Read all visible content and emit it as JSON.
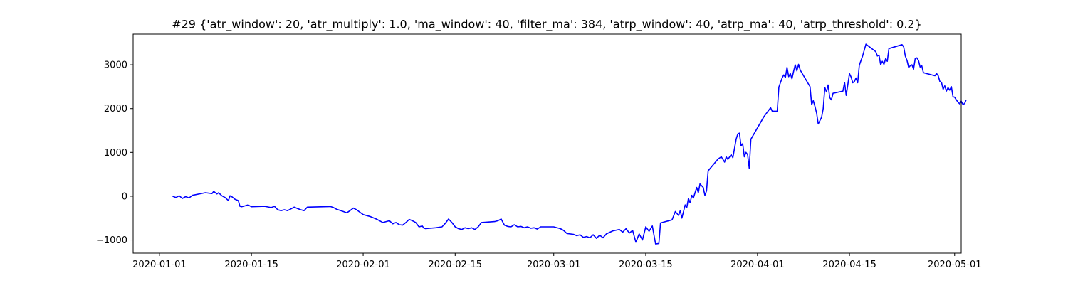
{
  "chart_data": {
    "type": "line",
    "title": "#29 {'atr_window': 20, 'atr_multiply': 1.0, 'ma_window': 40, 'filter_ma': 384, 'atrp_window': 40, 'atrp_ma': 40, 'atrp_threshold': 0.2}",
    "xlabel": "",
    "ylabel": "",
    "grid": false,
    "legend": "none",
    "x_tick_labels": [
      "2020-01-01",
      "2020-01-15",
      "2020-02-01",
      "2020-02-15",
      "2020-03-01",
      "2020-03-15",
      "2020-04-01",
      "2020-04-15",
      "2020-05-01"
    ],
    "y_tick_labels": [
      "−1000",
      "0",
      "1000",
      "2000",
      "3000"
    ],
    "y_ticks": [
      -1000,
      0,
      1000,
      2000,
      3000
    ],
    "x_ticks": [
      "2020-01-01",
      "2020-01-15",
      "2020-02-01",
      "2020-02-15",
      "2020-03-01",
      "2020-03-15",
      "2020-04-01",
      "2020-04-15",
      "2020-05-01"
    ],
    "xlim": [
      "2019-12-28",
      "2020-05-02"
    ],
    "ylim": [
      -1300,
      3700
    ],
    "series": [
      {
        "color": "#0000ff",
        "points": [
          [
            "2020-01-03",
            0
          ],
          [
            "2020-01-03T12:00",
            -30
          ],
          [
            "2020-01-04",
            10
          ],
          [
            "2020-01-04T12:00",
            -50
          ],
          [
            "2020-01-05",
            -10
          ],
          [
            "2020-01-05T12:00",
            -40
          ],
          [
            "2020-01-06",
            20
          ],
          [
            "2020-01-08",
            80
          ],
          [
            "2020-01-09",
            60
          ],
          [
            "2020-01-09T06:00",
            110
          ],
          [
            "2020-01-09T18:00",
            50
          ],
          [
            "2020-01-10",
            80
          ],
          [
            "2020-01-10T12:00",
            10
          ],
          [
            "2020-01-11",
            -30
          ],
          [
            "2020-01-11T12:00",
            -100
          ],
          [
            "2020-01-11T18:00",
            10
          ],
          [
            "2020-01-12",
            -10
          ],
          [
            "2020-01-12T12:00",
            -70
          ],
          [
            "2020-01-13",
            -100
          ],
          [
            "2020-01-13T06:00",
            -230
          ],
          [
            "2020-01-13T12:00",
            -240
          ],
          [
            "2020-01-14",
            -220
          ],
          [
            "2020-01-14T12:00",
            -200
          ],
          [
            "2020-01-15",
            -240
          ],
          [
            "2020-01-17",
            -230
          ],
          [
            "2020-01-18",
            -260
          ],
          [
            "2020-01-18T12:00",
            -230
          ],
          [
            "2020-01-19",
            -310
          ],
          [
            "2020-01-19T12:00",
            -330
          ],
          [
            "2020-01-20",
            -310
          ],
          [
            "2020-01-20T12:00",
            -330
          ],
          [
            "2020-01-21",
            -290
          ],
          [
            "2020-01-21T12:00",
            -250
          ],
          [
            "2020-01-22",
            -280
          ],
          [
            "2020-01-22T12:00",
            -310
          ],
          [
            "2020-01-23",
            -330
          ],
          [
            "2020-01-23T12:00",
            -250
          ],
          [
            "2020-01-27",
            -235
          ],
          [
            "2020-01-27T12:00",
            -260
          ],
          [
            "2020-01-28",
            -300
          ],
          [
            "2020-01-29",
            -350
          ],
          [
            "2020-01-29T12:00",
            -380
          ],
          [
            "2020-01-30",
            -330
          ],
          [
            "2020-01-30T12:00",
            -270
          ],
          [
            "2020-01-31",
            -310
          ],
          [
            "2020-02-01",
            -420
          ],
          [
            "2020-02-02",
            -460
          ],
          [
            "2020-02-03",
            -520
          ],
          [
            "2020-02-03T12:00",
            -560
          ],
          [
            "2020-02-04",
            -600
          ],
          [
            "2020-02-04T12:00",
            -580
          ],
          [
            "2020-02-05",
            -560
          ],
          [
            "2020-02-05T12:00",
            -630
          ],
          [
            "2020-02-06",
            -600
          ],
          [
            "2020-02-06T12:00",
            -650
          ],
          [
            "2020-02-07",
            -660
          ],
          [
            "2020-02-07T12:00",
            -600
          ],
          [
            "2020-02-08",
            -530
          ],
          [
            "2020-02-08T12:00",
            -560
          ],
          [
            "2020-02-09",
            -600
          ],
          [
            "2020-02-09T12:00",
            -700
          ],
          [
            "2020-02-10",
            -680
          ],
          [
            "2020-02-10T06:00",
            -730
          ],
          [
            "2020-02-10T12:00",
            -740
          ],
          [
            "2020-02-12",
            -720
          ],
          [
            "2020-02-13",
            -700
          ],
          [
            "2020-02-13T12:00",
            -620
          ],
          [
            "2020-02-14",
            -520
          ],
          [
            "2020-02-14T12:00",
            -600
          ],
          [
            "2020-02-15",
            -700
          ],
          [
            "2020-02-15T12:00",
            -740
          ],
          [
            "2020-02-16",
            -760
          ],
          [
            "2020-02-16T12:00",
            -720
          ],
          [
            "2020-02-17",
            -740
          ],
          [
            "2020-02-17T12:00",
            -720
          ],
          [
            "2020-02-18",
            -760
          ],
          [
            "2020-02-18T12:00",
            -700
          ],
          [
            "2020-02-19",
            -600
          ],
          [
            "2020-02-21",
            -580
          ],
          [
            "2020-02-21T12:00",
            -560
          ],
          [
            "2020-02-22",
            -520
          ],
          [
            "2020-02-22T12:00",
            -660
          ],
          [
            "2020-02-23",
            -690
          ],
          [
            "2020-02-23T12:00",
            -700
          ],
          [
            "2020-02-24",
            -650
          ],
          [
            "2020-02-24T12:00",
            -700
          ],
          [
            "2020-02-25",
            -690
          ],
          [
            "2020-02-25T12:00",
            -720
          ],
          [
            "2020-02-26",
            -700
          ],
          [
            "2020-02-26T12:00",
            -730
          ],
          [
            "2020-02-27",
            -720
          ],
          [
            "2020-02-27T12:00",
            -750
          ],
          [
            "2020-02-28",
            -700
          ],
          [
            "2020-03-01",
            -700
          ],
          [
            "2020-03-02",
            -740
          ],
          [
            "2020-03-02T12:00",
            -780
          ],
          [
            "2020-03-03",
            -850
          ],
          [
            "2020-03-04",
            -870
          ],
          [
            "2020-03-04T12:00",
            -900
          ],
          [
            "2020-03-05",
            -880
          ],
          [
            "2020-03-05T12:00",
            -940
          ],
          [
            "2020-03-06",
            -920
          ],
          [
            "2020-03-06T12:00",
            -950
          ],
          [
            "2020-03-07",
            -880
          ],
          [
            "2020-03-07T12:00",
            -960
          ],
          [
            "2020-03-08",
            -890
          ],
          [
            "2020-03-08T12:00",
            -950
          ],
          [
            "2020-03-09",
            -860
          ],
          [
            "2020-03-10",
            -790
          ],
          [
            "2020-03-11",
            -760
          ],
          [
            "2020-03-11T12:00",
            -820
          ],
          [
            "2020-03-12",
            -740
          ],
          [
            "2020-03-12T12:00",
            -840
          ],
          [
            "2020-03-13",
            -780
          ],
          [
            "2020-03-13T12:00",
            -1050
          ],
          [
            "2020-03-14",
            -860
          ],
          [
            "2020-03-14T12:00",
            -1000
          ],
          [
            "2020-03-15",
            -700
          ],
          [
            "2020-03-15T12:00",
            -800
          ],
          [
            "2020-03-16",
            -680
          ],
          [
            "2020-03-16T12:00",
            -1090
          ],
          [
            "2020-03-17",
            -1080
          ],
          [
            "2020-03-17T06:00",
            -610
          ],
          [
            "2020-03-19",
            -540
          ],
          [
            "2020-03-19T12:00",
            -350
          ],
          [
            "2020-03-20",
            -440
          ],
          [
            "2020-03-20T06:00",
            -330
          ],
          [
            "2020-03-20T12:00",
            -500
          ],
          [
            "2020-03-21",
            -200
          ],
          [
            "2020-03-21T06:00",
            -260
          ],
          [
            "2020-03-21T12:00",
            -50
          ],
          [
            "2020-03-21T18:00",
            -150
          ],
          [
            "2020-03-22",
            20
          ],
          [
            "2020-03-22T06:00",
            -40
          ],
          [
            "2020-03-22T18:00",
            200
          ],
          [
            "2020-03-23",
            80
          ],
          [
            "2020-03-23T06:00",
            280
          ],
          [
            "2020-03-23T18:00",
            200
          ],
          [
            "2020-03-24",
            20
          ],
          [
            "2020-03-24T06:00",
            120
          ],
          [
            "2020-03-24T12:00",
            580
          ],
          [
            "2020-03-26",
            850
          ],
          [
            "2020-03-26T12:00",
            900
          ],
          [
            "2020-03-27",
            780
          ],
          [
            "2020-03-27T06:00",
            900
          ],
          [
            "2020-03-27T12:00",
            840
          ],
          [
            "2020-03-28",
            950
          ],
          [
            "2020-03-28T06:00",
            880
          ],
          [
            "2020-03-28T18:00",
            1300
          ],
          [
            "2020-03-29",
            1420
          ],
          [
            "2020-03-29T06:00",
            1440
          ],
          [
            "2020-03-29T12:00",
            1150
          ],
          [
            "2020-03-29T18:00",
            1200
          ],
          [
            "2020-03-30",
            900
          ],
          [
            "2020-03-30T06:00",
            1000
          ],
          [
            "2020-03-30T12:00",
            950
          ],
          [
            "2020-03-30T18:00",
            640
          ],
          [
            "2020-03-31",
            1300
          ],
          [
            "2020-04-02",
            1820
          ],
          [
            "2020-04-03",
            2020
          ],
          [
            "2020-04-03T06:00",
            1940
          ],
          [
            "2020-04-03T12:00",
            1940
          ],
          [
            "2020-04-04",
            1940
          ],
          [
            "2020-04-04T06:00",
            2490
          ],
          [
            "2020-04-04T18:00",
            2700
          ],
          [
            "2020-04-05",
            2770
          ],
          [
            "2020-04-05T06:00",
            2710
          ],
          [
            "2020-04-05T12:00",
            2940
          ],
          [
            "2020-04-05T18:00",
            2730
          ],
          [
            "2020-04-06",
            2800
          ],
          [
            "2020-04-06T06:00",
            2680
          ],
          [
            "2020-04-06T12:00",
            2850
          ],
          [
            "2020-04-06T18:00",
            3000
          ],
          [
            "2020-04-07",
            2860
          ],
          [
            "2020-04-07T06:00",
            3010
          ],
          [
            "2020-04-07T12:00",
            2880
          ],
          [
            "2020-04-09",
            2500
          ],
          [
            "2020-04-09T06:00",
            2090
          ],
          [
            "2020-04-09T12:00",
            2180
          ],
          [
            "2020-04-09T18:00",
            2050
          ],
          [
            "2020-04-10",
            1900
          ],
          [
            "2020-04-10T06:00",
            1650
          ],
          [
            "2020-04-10T18:00",
            1800
          ],
          [
            "2020-04-11",
            2000
          ],
          [
            "2020-04-11T06:00",
            2480
          ],
          [
            "2020-04-11T12:00",
            2380
          ],
          [
            "2020-04-11T18:00",
            2540
          ],
          [
            "2020-04-12",
            2250
          ],
          [
            "2020-04-12T06:00",
            2200
          ],
          [
            "2020-04-12T12:00",
            2350
          ],
          [
            "2020-04-14",
            2400
          ],
          [
            "2020-04-14T06:00",
            2600
          ],
          [
            "2020-04-14T12:00",
            2300
          ],
          [
            "2020-04-15",
            2800
          ],
          [
            "2020-04-15T06:00",
            2720
          ],
          [
            "2020-04-15T12:00",
            2590
          ],
          [
            "2020-04-15T18:00",
            2620
          ],
          [
            "2020-04-16",
            2700
          ],
          [
            "2020-04-16T06:00",
            2590
          ],
          [
            "2020-04-16T12:00",
            2990
          ],
          [
            "2020-04-17",
            3200
          ],
          [
            "2020-04-17T12:00",
            3470
          ],
          [
            "2020-04-19",
            3300
          ],
          [
            "2020-04-19T06:00",
            3200
          ],
          [
            "2020-04-19T12:00",
            3220
          ],
          [
            "2020-04-19T18:00",
            3000
          ],
          [
            "2020-04-20",
            3080
          ],
          [
            "2020-04-20T06:00",
            3010
          ],
          [
            "2020-04-20T12:00",
            3140
          ],
          [
            "2020-04-20T18:00",
            3080
          ],
          [
            "2020-04-21",
            3370
          ],
          [
            "2020-04-23",
            3460
          ],
          [
            "2020-04-23T06:00",
            3410
          ],
          [
            "2020-04-23T12:00",
            3200
          ],
          [
            "2020-04-23T18:00",
            3100
          ],
          [
            "2020-04-24",
            2940
          ],
          [
            "2020-04-24T06:00",
            2980
          ],
          [
            "2020-04-24T12:00",
            3000
          ],
          [
            "2020-04-24T18:00",
            2900
          ],
          [
            "2020-04-25",
            3140
          ],
          [
            "2020-04-25T06:00",
            3160
          ],
          [
            "2020-04-25T12:00",
            3100
          ],
          [
            "2020-04-25T18:00",
            2950
          ],
          [
            "2020-04-26",
            2980
          ],
          [
            "2020-04-26T06:00",
            2820
          ],
          [
            "2020-04-28",
            2750
          ],
          [
            "2020-04-28T06:00",
            2800
          ],
          [
            "2020-04-28T12:00",
            2750
          ],
          [
            "2020-04-28T18:00",
            2620
          ],
          [
            "2020-04-29",
            2600
          ],
          [
            "2020-04-29T06:00",
            2440
          ],
          [
            "2020-04-29T12:00",
            2520
          ],
          [
            "2020-04-29T18:00",
            2400
          ],
          [
            "2020-04-30",
            2480
          ],
          [
            "2020-04-30T06:00",
            2420
          ],
          [
            "2020-04-30T12:00",
            2500
          ],
          [
            "2020-04-30T18:00",
            2270
          ],
          [
            "2020-05-01",
            2260
          ],
          [
            "2020-05-01T06:00",
            2200
          ],
          [
            "2020-05-01T12:00",
            2150
          ],
          [
            "2020-05-01T18:00",
            2110
          ],
          [
            "2020-05-02",
            2170
          ],
          [
            "2020-05-02T06:00",
            2100
          ],
          [
            "2020-05-02T12:00",
            2110
          ],
          [
            "2020-05-02T18:00",
            2200
          ]
        ]
      }
    ]
  }
}
